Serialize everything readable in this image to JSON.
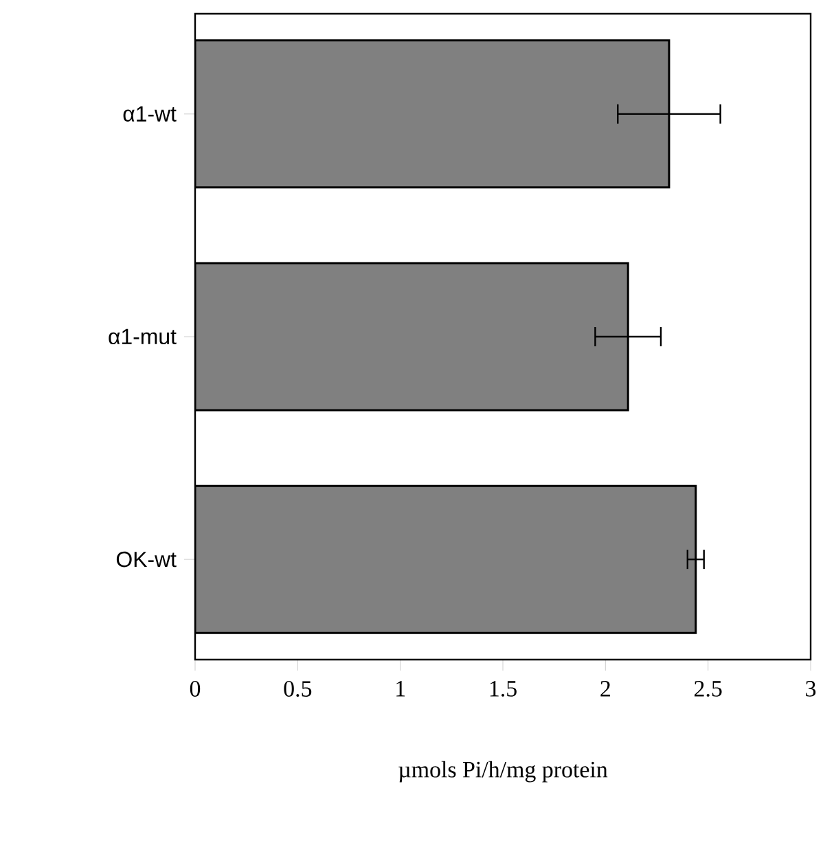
{
  "chart_data": {
    "type": "bar",
    "orientation": "horizontal",
    "xlabel": "µmols Pi/h/mg protein",
    "categories": [
      "α1-wt",
      "α1-mut",
      "OK-wt"
    ],
    "values": [
      2.31,
      2.11,
      2.44
    ],
    "errors": [
      0.25,
      0.16,
      0.04
    ],
    "color": "#808080",
    "xlim": [
      0,
      3
    ],
    "xticks": [
      0,
      0.5,
      1,
      1.5,
      2,
      2.5,
      3
    ]
  }
}
